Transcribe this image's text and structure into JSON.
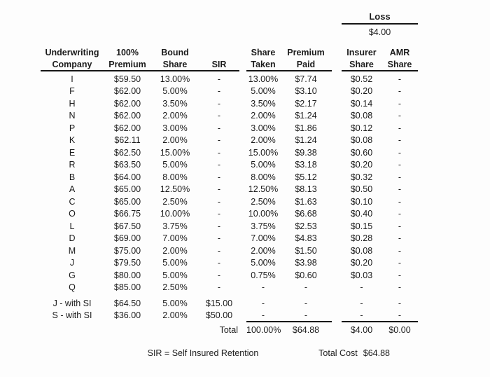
{
  "loss": {
    "label": "Loss",
    "value": "$4.00"
  },
  "table": {
    "headers": {
      "company": [
        "Underwriting",
        "Company"
      ],
      "premium100": [
        "100%",
        "Premium"
      ],
      "bound": [
        "Bound",
        "Share"
      ],
      "sir": [
        "",
        "SIR"
      ],
      "taken": [
        "Share",
        "Taken"
      ],
      "paid": [
        "Premium",
        "Paid"
      ],
      "insurer": [
        "Insurer",
        "Share"
      ],
      "amr": [
        "AMR",
        "Share"
      ]
    },
    "rows": [
      [
        "I",
        "$59.50",
        "13.00%",
        "-",
        "13.00%",
        "$7.74",
        "$0.52",
        "-"
      ],
      [
        "F",
        "$62.00",
        "5.00%",
        "-",
        "5.00%",
        "$3.10",
        "$0.20",
        "-"
      ],
      [
        "H",
        "$62.00",
        "3.50%",
        "-",
        "3.50%",
        "$2.17",
        "$0.14",
        "-"
      ],
      [
        "N",
        "$62.00",
        "2.00%",
        "-",
        "2.00%",
        "$1.24",
        "$0.08",
        "-"
      ],
      [
        "P",
        "$62.00",
        "3.00%",
        "-",
        "3.00%",
        "$1.86",
        "$0.12",
        "-"
      ],
      [
        "K",
        "$62.11",
        "2.00%",
        "-",
        "2.00%",
        "$1.24",
        "$0.08",
        "-"
      ],
      [
        "E",
        "$62.50",
        "15.00%",
        "-",
        "15.00%",
        "$9.38",
        "$0.60",
        "-"
      ],
      [
        "R",
        "$63.50",
        "5.00%",
        "-",
        "5.00%",
        "$3.18",
        "$0.20",
        "-"
      ],
      [
        "B",
        "$64.00",
        "8.00%",
        "-",
        "8.00%",
        "$5.12",
        "$0.32",
        "-"
      ],
      [
        "A",
        "$65.00",
        "12.50%",
        "-",
        "12.50%",
        "$8.13",
        "$0.50",
        "-"
      ],
      [
        "C",
        "$65.00",
        "2.50%",
        "-",
        "2.50%",
        "$1.63",
        "$0.10",
        "-"
      ],
      [
        "O",
        "$66.75",
        "10.00%",
        "-",
        "10.00%",
        "$6.68",
        "$0.40",
        "-"
      ],
      [
        "L",
        "$67.50",
        "3.75%",
        "-",
        "3.75%",
        "$2.53",
        "$0.15",
        "-"
      ],
      [
        "D",
        "$69.00",
        "7.00%",
        "-",
        "7.00%",
        "$4.83",
        "$0.28",
        "-"
      ],
      [
        "M",
        "$75.00",
        "2.00%",
        "-",
        "2.00%",
        "$1.50",
        "$0.08",
        "-"
      ],
      [
        "J",
        "$79.50",
        "5.00%",
        "-",
        "5.00%",
        "$3.98",
        "$0.20",
        "-"
      ],
      [
        "G",
        "$80.00",
        "5.00%",
        "-",
        "0.75%",
        "$0.60",
        "$0.03",
        "-"
      ],
      [
        "Q",
        "$85.00",
        "2.50%",
        "-",
        "-",
        "-",
        "-",
        "-"
      ]
    ],
    "si_rows": [
      [
        "J - with SI",
        "$64.50",
        "5.00%",
        "$15.00",
        "-",
        "-",
        "-",
        "-"
      ],
      [
        "S - with SI",
        "$36.00",
        "2.00%",
        "$50.00",
        "-",
        "-",
        "-",
        "-"
      ]
    ],
    "total": {
      "label": "Total",
      "taken": "100.00%",
      "paid": "$64.88",
      "insurer": "$4.00",
      "amr": "$0.00"
    }
  },
  "footer": {
    "sir_note": "SIR = Self Insured Retention",
    "total_cost_label": "Total Cost",
    "total_cost_value": "$64.88"
  }
}
